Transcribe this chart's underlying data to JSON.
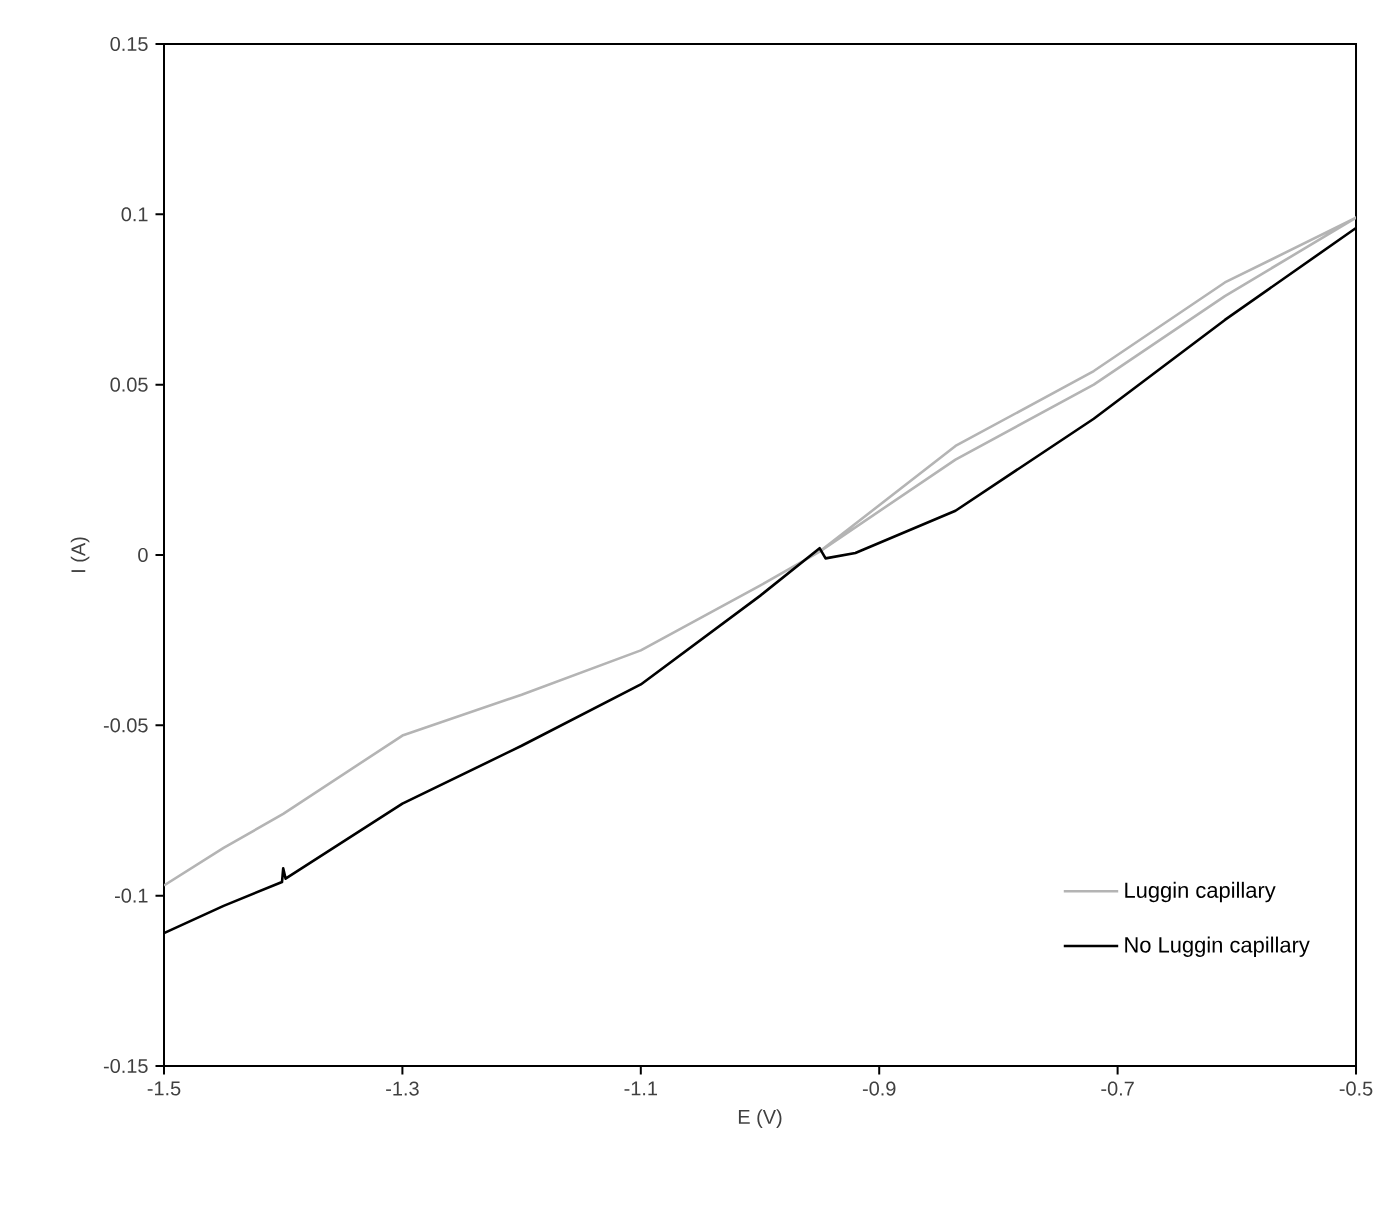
{
  "chart_data": {
    "type": "line",
    "xlabel": "E (V)",
    "ylabel": "I (A)",
    "xlim": [
      -1.5,
      -0.5
    ],
    "ylim": [
      -0.15,
      0.15
    ],
    "xticks": [
      -1.5,
      -1.3,
      -1.1,
      -0.9,
      -0.7,
      -0.5
    ],
    "yticks": [
      -0.15,
      -0.1,
      -0.05,
      0,
      0.05,
      0.1,
      0.15
    ],
    "grid": false,
    "legend": "bottom right",
    "marker": "none",
    "line_style": "solid",
    "series": [
      {
        "name": "Luggin capillary",
        "color": "#b4b4b4",
        "x": [
          -1.5,
          -1.45,
          -1.4,
          -1.3,
          -1.2,
          -1.1,
          -1.0,
          -0.95,
          -0.836,
          -0.72,
          -0.61,
          -0.5,
          -0.61,
          -0.72,
          -0.836,
          -0.95
        ],
        "values": [
          -0.097,
          -0.086,
          -0.076,
          -0.053,
          -0.041,
          -0.028,
          -0.009,
          0.001,
          0.032,
          0.054,
          0.08,
          0.099,
          0.076,
          0.05,
          0.028,
          0.001
        ]
      },
      {
        "name": "No Luggin capillary",
        "color": "#000000",
        "x": [
          -1.5,
          -1.45,
          -1.401,
          -1.4,
          -1.398,
          -1.3,
          -1.2,
          -1.1,
          -1.0,
          -0.95,
          -0.945,
          -0.92,
          -0.836,
          -0.72,
          -0.61,
          -0.5
        ],
        "values": [
          -0.111,
          -0.103,
          -0.096,
          -0.092,
          -0.095,
          -0.073,
          -0.056,
          -0.038,
          -0.012,
          0.002,
          -0.001,
          0.0006,
          0.013,
          0.04,
          0.069,
          0.096
        ]
      }
    ]
  }
}
